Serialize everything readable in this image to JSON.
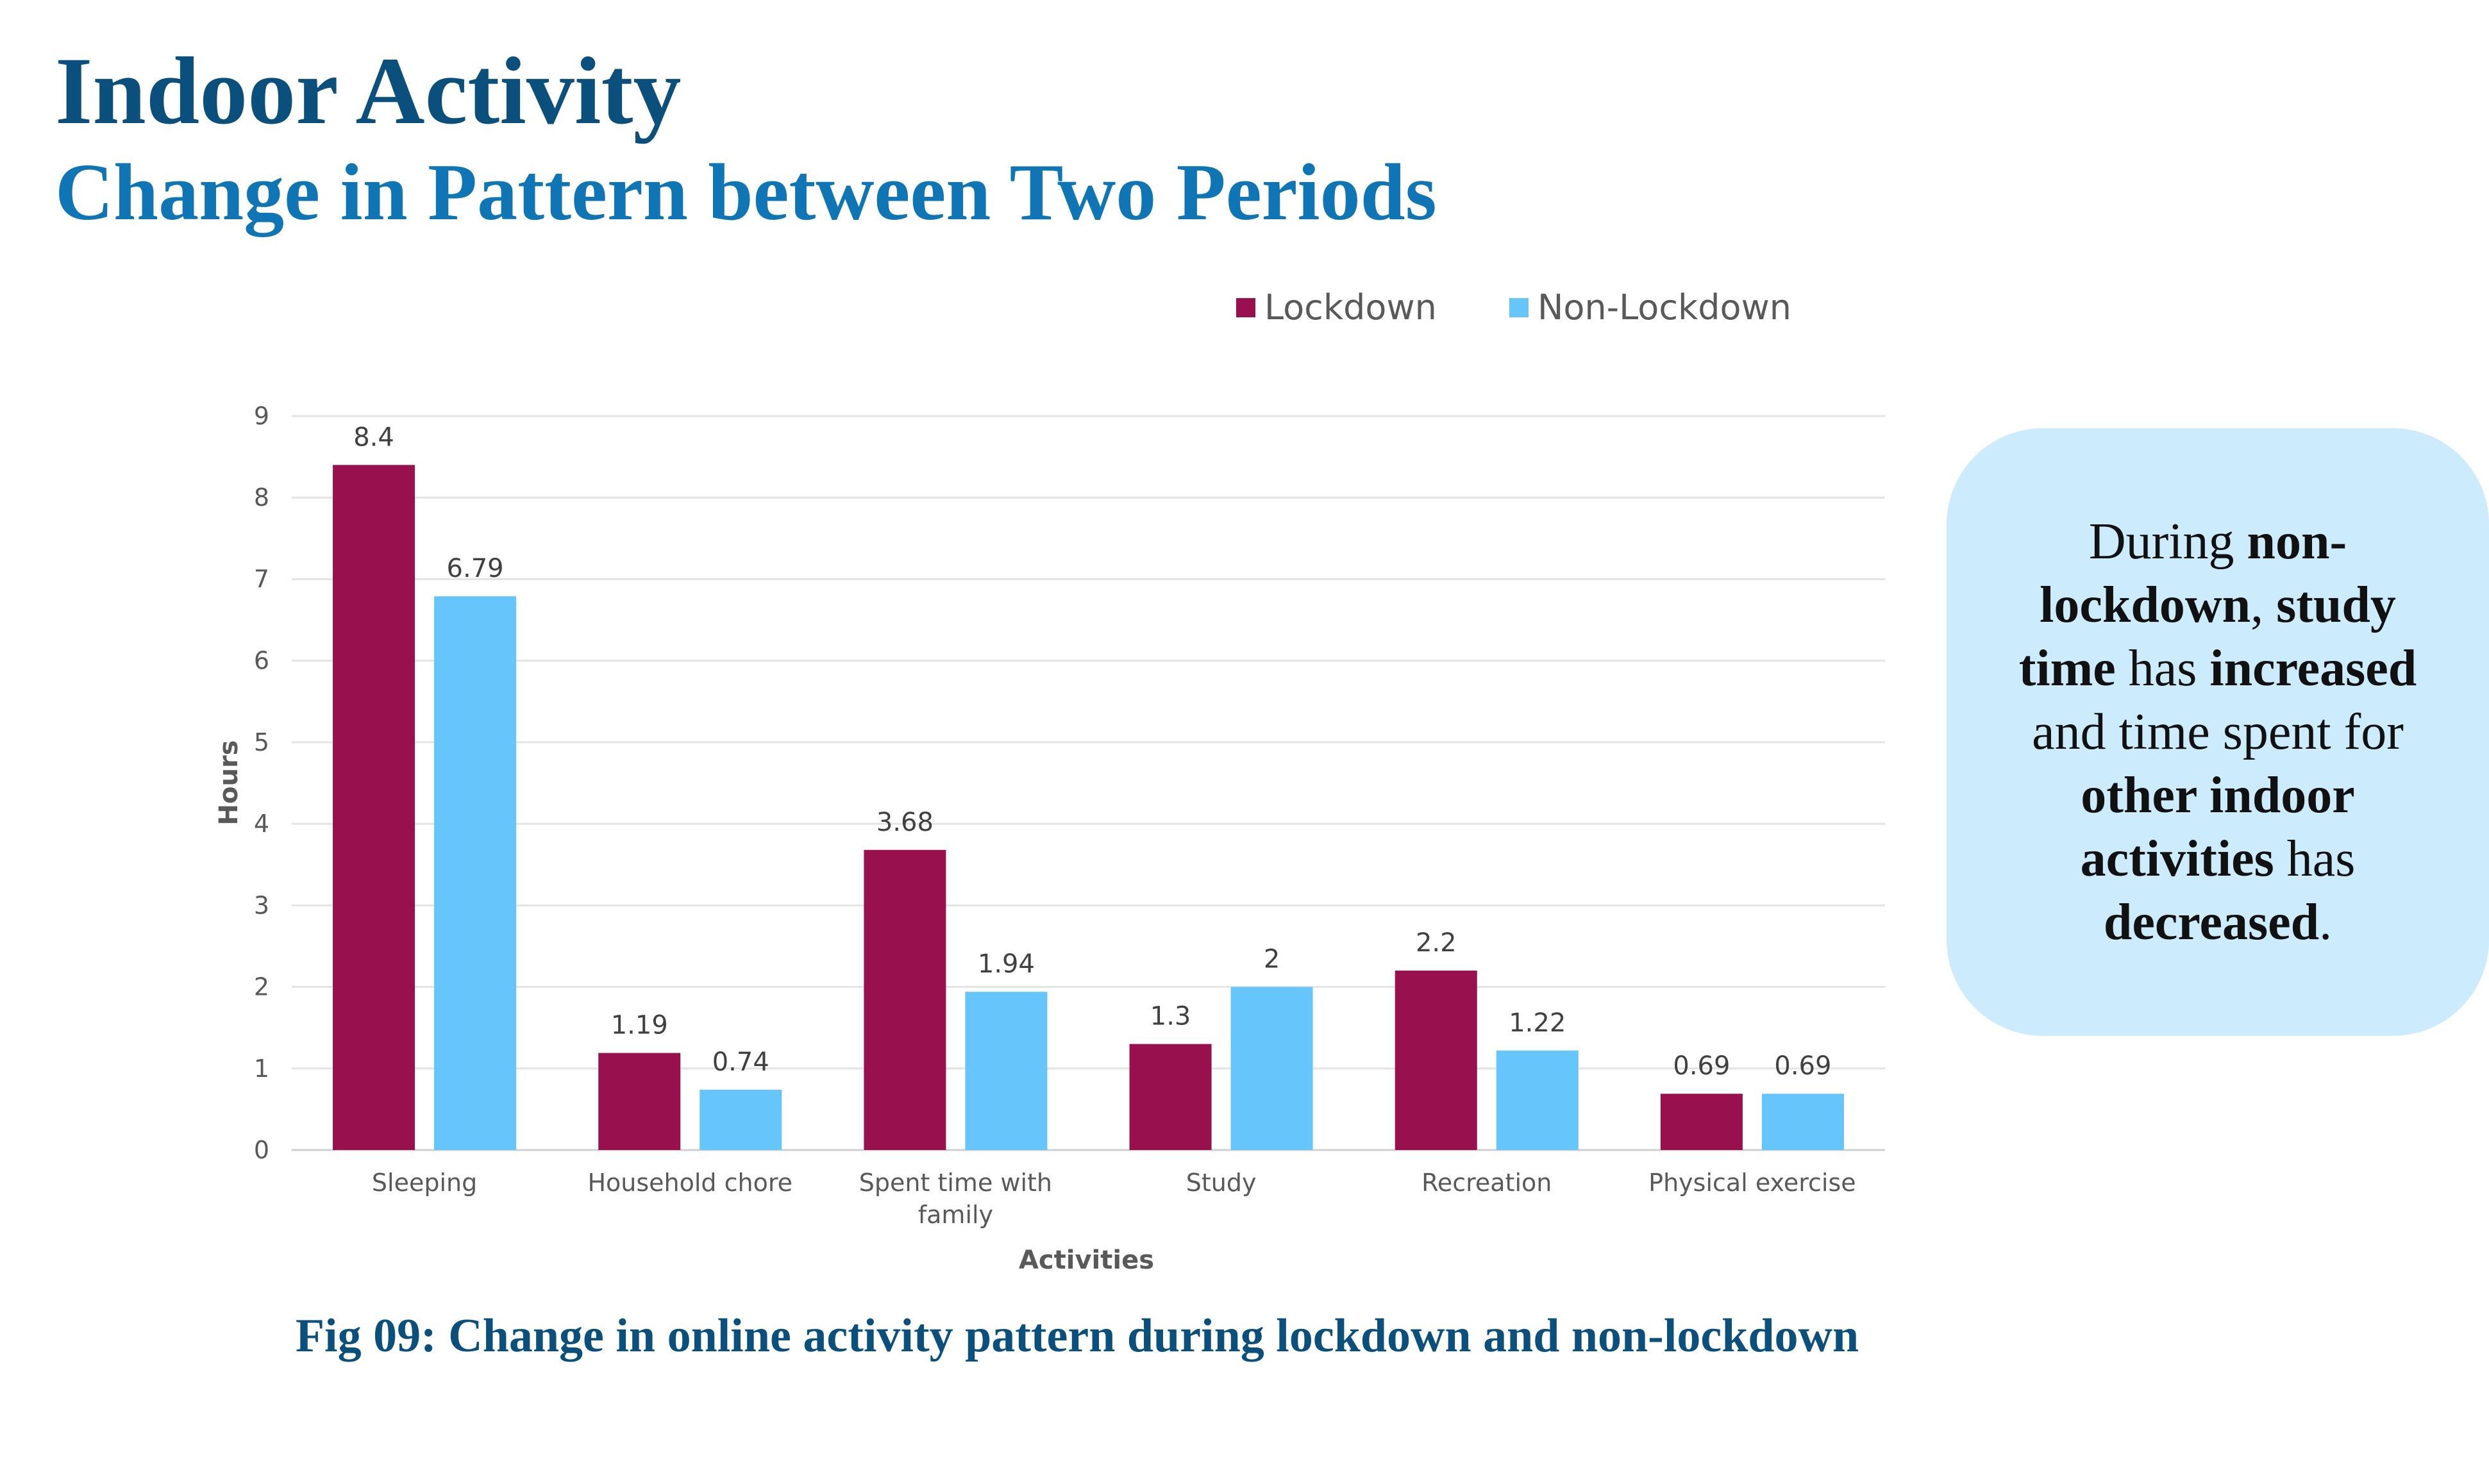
{
  "slide": {
    "title": "Indoor Activity",
    "subtitle": "Change in Pattern between Two Periods",
    "caption": "Fig 09: Change in online activity pattern during lockdown and non-lockdown"
  },
  "callout": {
    "parts": [
      {
        "text": "During ",
        "bold": false
      },
      {
        "text": "non-lockdown",
        "bold": true
      },
      {
        "text": ", ",
        "bold": false
      },
      {
        "text": "study time",
        "bold": true
      },
      {
        "text": " has ",
        "bold": false
      },
      {
        "text": "increased",
        "bold": true
      },
      {
        "text": " and time spent for ",
        "bold": false
      },
      {
        "text": "other indoor activities",
        "bold": true
      },
      {
        "text": " has ",
        "bold": false
      },
      {
        "text": "decreased",
        "bold": true
      },
      {
        "text": ".",
        "bold": false
      }
    ]
  },
  "chart_data": {
    "type": "bar",
    "categories": [
      "Sleeping",
      "Household chore",
      "Spent time with family",
      "Study",
      "Recreation",
      "Physical exercise"
    ],
    "category_lines": [
      [
        "Sleeping"
      ],
      [
        "Household chore"
      ],
      [
        "Spent time with",
        "family"
      ],
      [
        "Study"
      ],
      [
        "Recreation"
      ],
      [
        "Physical exercise"
      ]
    ],
    "series": [
      {
        "name": "Lockdown",
        "values": [
          8.4,
          1.19,
          3.68,
          1.3,
          2.2,
          0.69
        ],
        "color": "#99104F"
      },
      {
        "name": "Non-Lockdown",
        "values": [
          6.79,
          0.74,
          1.94,
          2,
          1.22,
          0.69
        ],
        "color": "#66C6FC"
      }
    ],
    "value_labels": [
      [
        "8.4",
        "1.19",
        "3.68",
        "1.3",
        "2.2",
        "0.69"
      ],
      [
        "6.79",
        "0.74",
        "1.94",
        "2",
        "1.22",
        "0.69"
      ]
    ],
    "yticks": [
      "0",
      "1",
      "2",
      "3",
      "4",
      "5",
      "6",
      "7",
      "8",
      "9"
    ],
    "ylim": [
      0,
      9
    ],
    "xlabel": "Activities",
    "ylabel": "Hours",
    "grid": true,
    "legend_position": "top-right"
  }
}
